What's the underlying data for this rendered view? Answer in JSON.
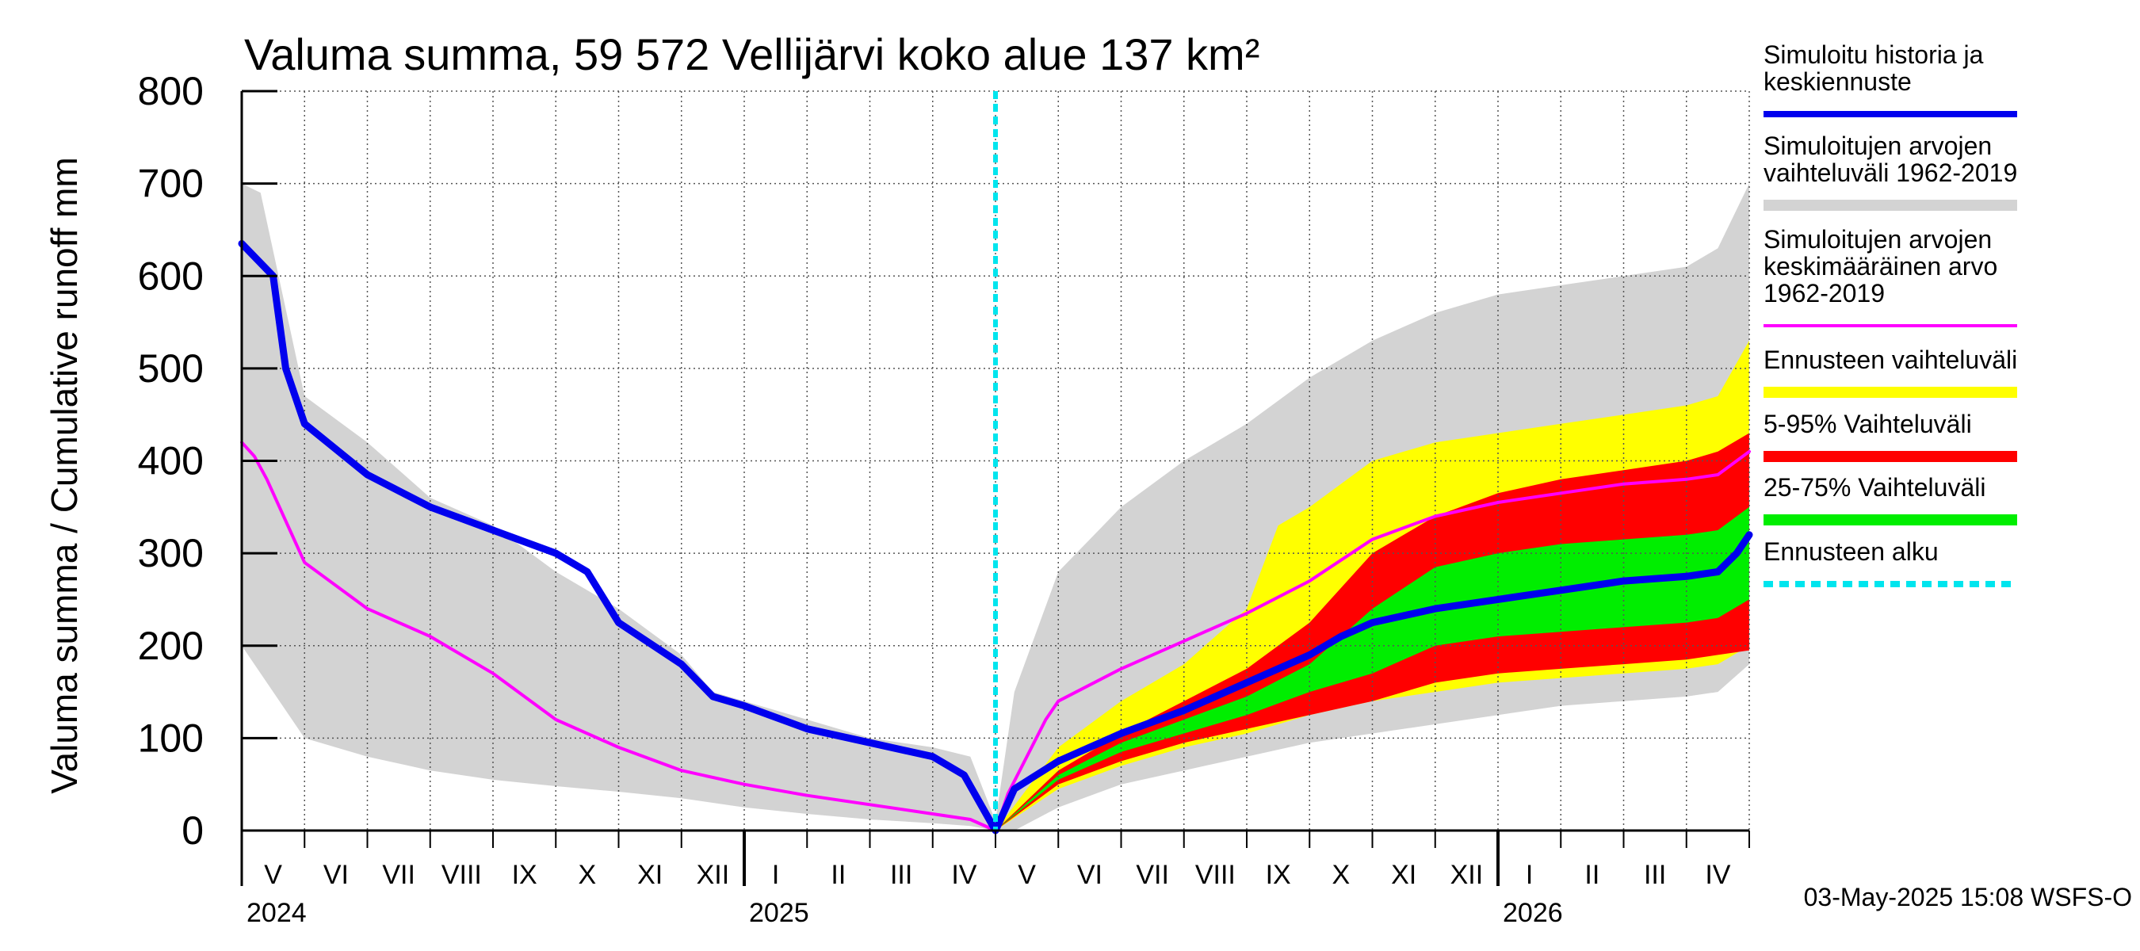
{
  "chart_data": {
    "type": "area",
    "title": "Valuma summa, 59 572 Vellijärvi koko alue 137 km²",
    "ylabel": "Valuma summa / Cumulative runoff    mm",
    "ylim": [
      0,
      800
    ],
    "yticks": [
      0,
      100,
      200,
      300,
      400,
      500,
      600,
      700,
      800
    ],
    "x_unit": "months since start of May 2024",
    "xlim": [
      0,
      24
    ],
    "forecast_start": 12,
    "months": [
      {
        "label": "V",
        "x": 0.5
      },
      {
        "label": "VI",
        "x": 1.5
      },
      {
        "label": "VII",
        "x": 2.5
      },
      {
        "label": "VIII",
        "x": 3.5
      },
      {
        "label": "IX",
        "x": 4.5
      },
      {
        "label": "X",
        "x": 5.5
      },
      {
        "label": "XI",
        "x": 6.5
      },
      {
        "label": "XII",
        "x": 7.5
      },
      {
        "label": "I",
        "x": 8.5
      },
      {
        "label": "II",
        "x": 9.5
      },
      {
        "label": "III",
        "x": 10.5
      },
      {
        "label": "IV",
        "x": 11.5
      },
      {
        "label": "V",
        "x": 12.5
      },
      {
        "label": "VI",
        "x": 13.5
      },
      {
        "label": "VII",
        "x": 14.5
      },
      {
        "label": "VIII",
        "x": 15.5
      },
      {
        "label": "IX",
        "x": 16.5
      },
      {
        "label": "X",
        "x": 17.5
      },
      {
        "label": "XI",
        "x": 18.5
      },
      {
        "label": "XII",
        "x": 19.5
      },
      {
        "label": "I",
        "x": 20.5
      },
      {
        "label": "II",
        "x": 21.5
      },
      {
        "label": "III",
        "x": 22.5
      },
      {
        "label": "IV",
        "x": 23.5
      }
    ],
    "years": [
      {
        "label": "2024",
        "x": 0
      },
      {
        "label": "2025",
        "x": 8
      },
      {
        "label": "2026",
        "x": 20
      }
    ],
    "series": [
      {
        "name": "Simuloitujen arvojen vaihteluväli 1962-2019",
        "kind": "band",
        "color": "#d3d3d3",
        "x": [
          0,
          0.3,
          1,
          2,
          3,
          4,
          5,
          6,
          7,
          7.5,
          8,
          9,
          10,
          11,
          11.6,
          12,
          12.3,
          13,
          14,
          15,
          16,
          17,
          18,
          19,
          20,
          21,
          22,
          23,
          23.5,
          24
        ],
        "upper": [
          700,
          690,
          470,
          420,
          360,
          330,
          280,
          240,
          190,
          150,
          140,
          120,
          100,
          90,
          80,
          10,
          150,
          280,
          350,
          400,
          440,
          490,
          530,
          560,
          580,
          590,
          600,
          610,
          630,
          700
        ],
        "lower": [
          200,
          170,
          100,
          80,
          65,
          55,
          48,
          42,
          35,
          30,
          25,
          18,
          12,
          8,
          5,
          0,
          0,
          25,
          50,
          65,
          80,
          95,
          105,
          115,
          125,
          135,
          140,
          145,
          150,
          180
        ]
      },
      {
        "name": "Ennusteen vaihteluväli",
        "kind": "band",
        "color": "#ffff00",
        "x": [
          12,
          13,
          14,
          15,
          16,
          16.5,
          17,
          18,
          19,
          20,
          21,
          22,
          23,
          23.5,
          24
        ],
        "upper": [
          0,
          90,
          140,
          180,
          240,
          330,
          350,
          400,
          420,
          430,
          440,
          450,
          460,
          470,
          530
        ],
        "lower": [
          0,
          45,
          70,
          90,
          105,
          115,
          125,
          140,
          150,
          160,
          165,
          170,
          175,
          180,
          200
        ]
      },
      {
        "name": "5-95% Vaihteluväli",
        "kind": "band",
        "color": "#ff0000",
        "x": [
          12,
          13,
          14,
          15,
          16,
          17,
          18,
          19,
          20,
          21,
          22,
          23,
          23.5,
          24
        ],
        "upper": [
          0,
          65,
          105,
          140,
          175,
          225,
          300,
          340,
          365,
          380,
          390,
          400,
          410,
          430
        ],
        "lower": [
          0,
          50,
          75,
          95,
          110,
          125,
          140,
          160,
          170,
          175,
          180,
          185,
          190,
          195
        ]
      },
      {
        "name": "25-75% Vaihteluväli",
        "kind": "band",
        "color": "#00ee00",
        "x": [
          12,
          13,
          14,
          15,
          16,
          17,
          18,
          19,
          20,
          21,
          22,
          23,
          23.5,
          24
        ],
        "upper": [
          0,
          60,
          95,
          120,
          145,
          180,
          240,
          285,
          300,
          310,
          315,
          320,
          325,
          350
        ],
        "lower": [
          0,
          55,
          85,
          105,
          125,
          150,
          170,
          200,
          210,
          215,
          220,
          225,
          230,
          250
        ]
      },
      {
        "name": "Simuloitujen arvojen keskimääräinen arvo 1962-2019",
        "kind": "line",
        "color": "#ff00ff",
        "width": 4,
        "x": [
          0,
          0.2,
          0.4,
          1,
          2,
          3,
          4,
          5,
          6,
          7,
          8,
          9,
          10,
          11,
          11.6,
          12,
          12.2,
          12.8,
          13,
          14,
          15,
          16,
          17,
          18,
          19,
          20,
          21,
          22,
          23,
          23.5,
          24
        ],
        "values": [
          420,
          405,
          380,
          290,
          240,
          210,
          170,
          120,
          90,
          65,
          50,
          38,
          28,
          18,
          12,
          0,
          40,
          120,
          140,
          175,
          205,
          235,
          270,
          315,
          340,
          355,
          365,
          375,
          380,
          385,
          410
        ]
      },
      {
        "name": "Simuloitu historia ja keskiennuste",
        "kind": "line",
        "color": "#0000ee",
        "width": 9,
        "x": [
          0,
          0.5,
          0.7,
          1,
          2,
          3,
          4,
          5,
          5.5,
          6,
          7,
          7.5,
          8,
          9,
          10,
          11,
          11.5,
          12,
          12.3,
          13,
          14,
          15,
          16,
          17,
          17.5,
          18,
          19,
          20,
          21,
          22,
          23,
          23.5,
          23.8,
          24
        ],
        "values": [
          635,
          600,
          500,
          440,
          385,
          350,
          325,
          300,
          280,
          225,
          180,
          145,
          135,
          110,
          95,
          80,
          60,
          0,
          45,
          75,
          105,
          130,
          160,
          190,
          210,
          225,
          240,
          250,
          260,
          270,
          275,
          280,
          300,
          320
        ]
      }
    ],
    "forecast_line": {
      "name": "Ennusteen alku",
      "color": "#00e5ee"
    },
    "legend": [
      {
        "lines": [
          "Simuloitu historia ja",
          "keskiennuste"
        ],
        "color": "#0000ee",
        "style": "thin"
      },
      {
        "lines": [
          "Simuloitujen arvojen",
          "vaihteluväli 1962-2019"
        ],
        "color": "#d3d3d3",
        "style": "thick"
      },
      {
        "lines": [
          "Simuloitujen arvojen",
          "keskimääräinen arvo",
          "   1962-2019"
        ],
        "color": "#ff00ff",
        "style": "line"
      },
      {
        "lines": [
          "Ennusteen vaihteluväli"
        ],
        "color": "#ffff00",
        "style": "thick"
      },
      {
        "lines": [
          "5-95% Vaihteluväli"
        ],
        "color": "#ff0000",
        "style": "thick"
      },
      {
        "lines": [
          "25-75% Vaihteluväli"
        ],
        "color": "#00ee00",
        "style": "thick"
      },
      {
        "lines": [
          "Ennusteen alku"
        ],
        "color": "#00e5ee",
        "style": "dashed"
      }
    ],
    "timestamp": "03-May-2025 15:08 WSFS-O"
  }
}
